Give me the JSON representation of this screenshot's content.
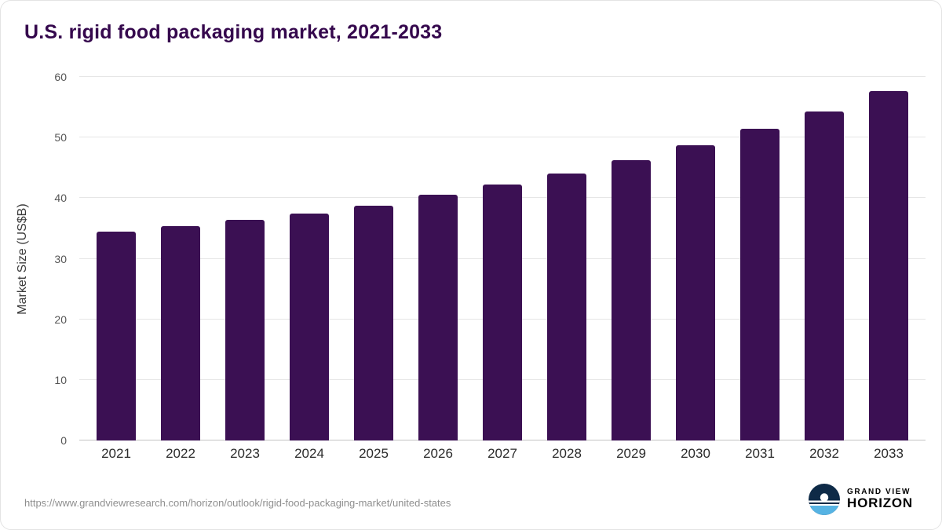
{
  "chart_data": {
    "type": "bar",
    "title": "U.S. rigid food packaging market, 2021-2033",
    "categories": [
      "2021",
      "2022",
      "2023",
      "2024",
      "2025",
      "2026",
      "2027",
      "2028",
      "2029",
      "2030",
      "2031",
      "2032",
      "2033"
    ],
    "values": [
      34.5,
      35.4,
      36.4,
      37.5,
      38.8,
      40.5,
      42.2,
      44.1,
      46.3,
      48.7,
      51.4,
      54.3,
      57.7
    ],
    "xlabel": "",
    "ylabel": "Market Size (US$B)",
    "ylim": [
      0,
      60
    ],
    "yticks": [
      0,
      10,
      20,
      30,
      40,
      50,
      60
    ],
    "grid": true,
    "legend_position": "none"
  },
  "colors": {
    "bar": "#3b1053",
    "title": "#35084d",
    "grid": "#e6e6e6",
    "axis_line": "#c4c4c4",
    "logo_navy": "#0e2a47",
    "logo_blue": "#56b3e3"
  },
  "footer": {
    "source_url": "https://www.grandviewresearch.com/horizon/outlook/rigid-food-packaging-market/united-states",
    "logo_line1": "GRAND VIEW",
    "logo_line2": "HORIZON"
  }
}
